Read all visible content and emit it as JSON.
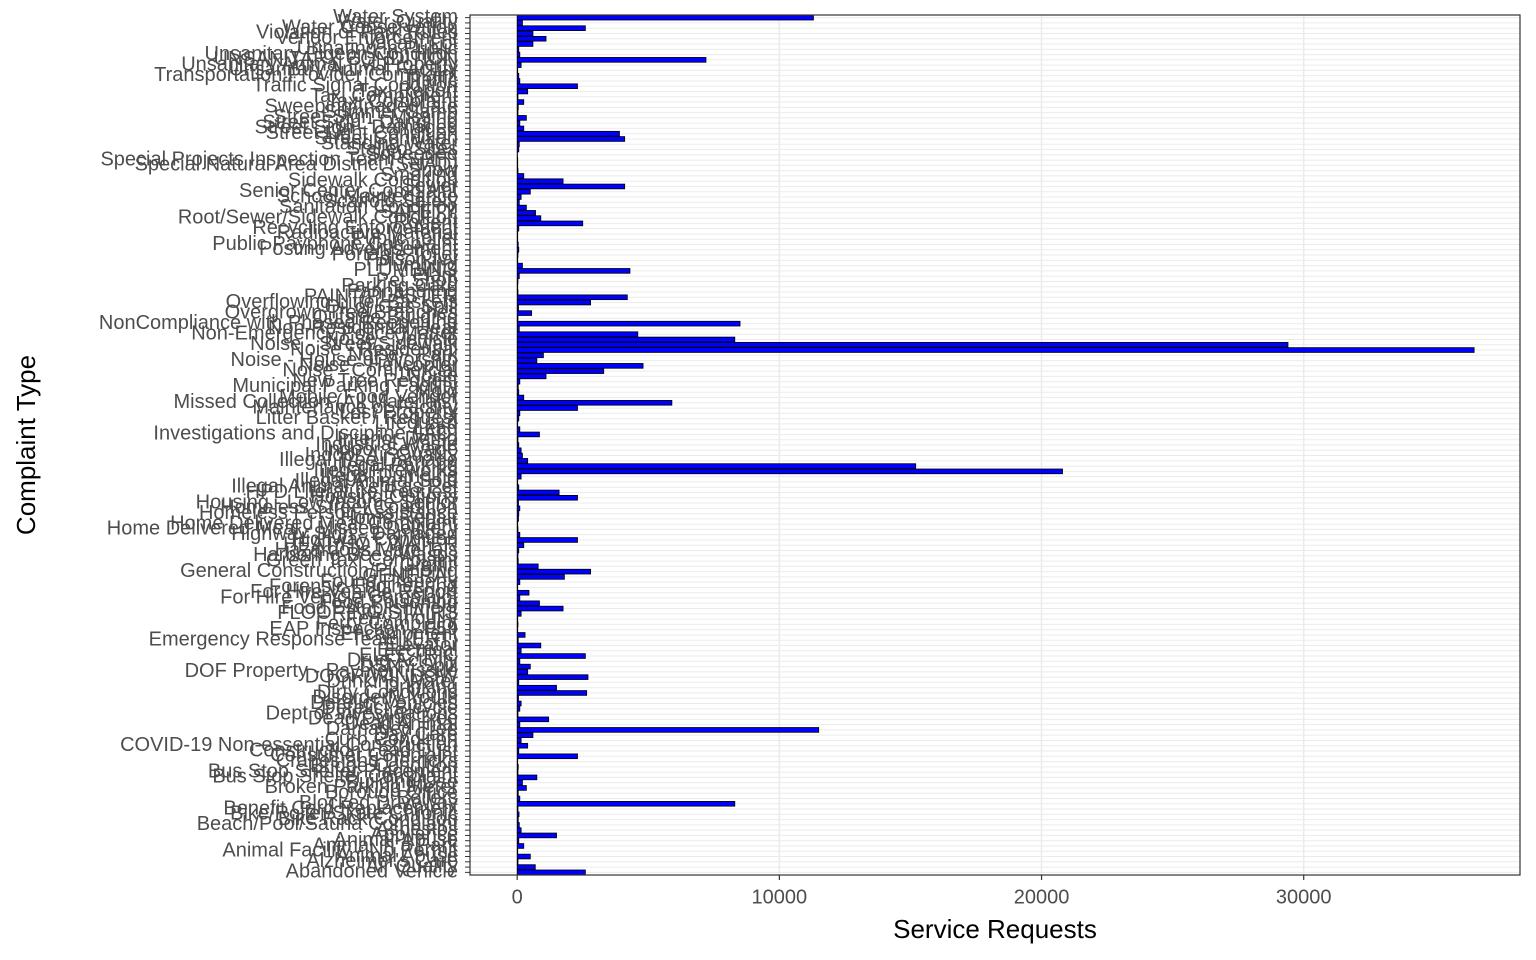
{
  "chart_data": {
    "type": "bar",
    "orientation": "horizontal",
    "x_label": "Service Requests",
    "y_label": "Complaint Type",
    "color": "#0000ff",
    "edge_color": "#000000",
    "grid": true,
    "xlim": [
      -1800,
      38250
    ],
    "xticks": [
      0,
      10000,
      20000,
      30000
    ],
    "categories": [
      "Abandoned Vehicle",
      "Air Quality",
      "Alzheimer's Care",
      "Animal Abuse",
      "Animal Facility - No Permit",
      "Animal in a Park",
      "Animal-Abuse",
      "Appliance",
      "Asbestos",
      "Beach/Pool/Sauna Complaint",
      "Bike Rack Condition",
      "Bike/Roller/Skate Chronic",
      "Benefit Card Replacement",
      "Blocked Driveway",
      "Boilers",
      "Borough Office",
      "Broken Parking Meter",
      "Building/Use",
      "Bus Stop Shelter Complaint",
      "Bus Stop Shelter Placement",
      "Bridge Condition",
      "Cranes and Derricks",
      "Consumer Complaint",
      "Construction Lead Dust",
      "COVID-19 Non-essential Construction",
      "Curb Condition",
      "Day Care",
      "Damaged Tree",
      "Dead Animal",
      "Dead/Dying Tree",
      "Dept of Investigations",
      "Derelict Bicycle",
      "Derelict Vehicles",
      "Disorderly Youth",
      "Dirty Conditions",
      "Drinking",
      "Drinking Water",
      "DOOR/WINDOW",
      "DOF Property - Payment Issue",
      "DSNY Spill",
      "Drug Activity",
      "ELECTRIC",
      "Electrical",
      "Elevator",
      "Emergency Response Team (ERT)",
      "Encampment",
      "EAP Inspection - F59",
      "Ferry Complaint",
      "Ferry Inquiry",
      "FLOORING/STAIRS",
      "Food Establishment",
      "Food Poisoning",
      "For Hire Vehicle Complaint",
      "For Hire Vehicle Report",
      "Forensic Engineering",
      "Found Property",
      "GENERAL",
      "General Construction/Plumbing",
      "Graffiti",
      "Green Taxi Complaint",
      "Harboring Bees/Wasps",
      "Hazardous Materials",
      "HEAT/HOT WATER",
      "Highway Condition",
      "Highway Sign - Damaged",
      "Home Delivered Meal - Missed Delivery",
      "Home Delivered Meal Complaint",
      "Home Repair",
      "Homeless Person Assistance",
      "Homeless Street Condition",
      "Housing - Low Income Senior",
      "Housing Options",
      "HPD Literature Request",
      "Illegal Animal Kept as Pet",
      "Illegal Animal Sold",
      "Illegal Dumping",
      "Illegal Fireworks",
      "Illegal Parking",
      "Illegal Tree Damage",
      "Indoor Air Quality",
      "Indoor Sewage",
      "Industrial Waste",
      "Interior Demo",
      "Investigations and Discipline (IAD)",
      "Lead",
      "Lifeguard",
      "Litter Basket / Request",
      "Lost Property",
      "Maintenance or Facility",
      "Missed Collection (All Materials)",
      "Mobile Food Vendor",
      "Mold",
      "Municipal Parking Facility",
      "New Tree Request",
      "Noise",
      "Noise - Commercial",
      "Noise - Helicopter",
      "Noise - House of Worship",
      "Noise - Park",
      "Noise - Residential",
      "Noise - Street/Sidewalk",
      "Noise - Vehicle",
      "Non-Emergency Police Matter",
      "Non-Residential Heat",
      "NonCompliance with Phased Reopening",
      "Outside Building",
      "Overgrown Tree/Branches",
      "Oil or Gas Spill",
      "Overflowing Litter Baskets",
      "PAINT/PLASTER",
      "Panhandling",
      "Parking Card",
      "Pet Shop",
      "Plant",
      "PLUMBING",
      "Plumbing",
      "Poison Ivy",
      "Portable Toilet",
      "Posting Advertisement",
      "Public Payphone Complaint",
      "Public Toilet",
      "Radioactive Material",
      "Recycling Enforcement",
      "Rodent",
      "Root/Sewer/Sidewalk Condition",
      "SAFETY",
      "Sanitation Condition",
      "Scaffold Safety",
      "School Maintenance",
      "Senior Center Complaint",
      "Sewer",
      "Sidewalk Condition",
      "Smoking",
      "Snow",
      "Special Natural Area District (SNAD)",
      "Special Projects Inspection Team (SPIT)",
      "Squeegee",
      "Stalled Sites",
      "Standing Water",
      "Street Condition",
      "Street Light Condition",
      "Street Sign - Damaged",
      "Street Sign - Dangling",
      "Street Sign - Missing",
      "Summer Camp",
      "Sweeping/Inadequate",
      "Taxi Complaint",
      "Taxi Compliment",
      "Taxi Report",
      "Traffic Signal Condition",
      "Traffic",
      "Transportation Provider Complaint",
      "Unsanitary Animal Facility",
      "Unsanitary Animal Pvt Property",
      "UNSANITARY CONDITION",
      "Unsanitary Pigeon Condition",
      "Urinating in Public",
      "Vacant Lot",
      "Vendor Enforcement",
      "Violation of Park Rules",
      "Water Conservation",
      "Water Quality",
      "Water System"
    ],
    "values": [
      2600,
      690,
      30,
      500,
      20,
      250,
      60,
      1500,
      150,
      80,
      40,
      70,
      30,
      8300,
      100,
      40,
      350,
      200,
      750,
      30,
      40,
      20,
      2300,
      60,
      400,
      150,
      600,
      11500,
      100,
      1200,
      30,
      100,
      150,
      50,
      2650,
      1500,
      60,
      2700,
      400,
      500,
      100,
      2600,
      150,
      900,
      40,
      300,
      20,
      30,
      20,
      150,
      1750,
      850,
      100,
      450,
      20,
      100,
      1800,
      2800,
      800,
      40,
      30,
      60,
      250,
      2300,
      100,
      30,
      20,
      50,
      60,
      100,
      50,
      2300,
      1600,
      60,
      20,
      150,
      20800,
      15200,
      400,
      200,
      150,
      60,
      30,
      850,
      100,
      20,
      60,
      100,
      2300,
      5900,
      250,
      60,
      40,
      100,
      1100,
      3300,
      4800,
      750,
      1000,
      36500,
      29400,
      8300,
      4600,
      80,
      8500,
      30,
      550,
      50,
      2800,
      4200,
      30,
      20,
      30,
      80,
      4300,
      200,
      20,
      30,
      60,
      40,
      20,
      20,
      60,
      2500,
      900,
      700,
      350,
      80,
      150,
      500,
      4100,
      1750,
      250,
      30,
      20,
      20,
      10,
      60,
      80,
      4100,
      3900,
      250,
      100,
      350,
      30,
      40,
      250,
      30,
      400,
      2300,
      100,
      60,
      20,
      150,
      7200,
      100,
      60,
      600,
      1100,
      600,
      2600,
      200,
      11300
    ]
  }
}
